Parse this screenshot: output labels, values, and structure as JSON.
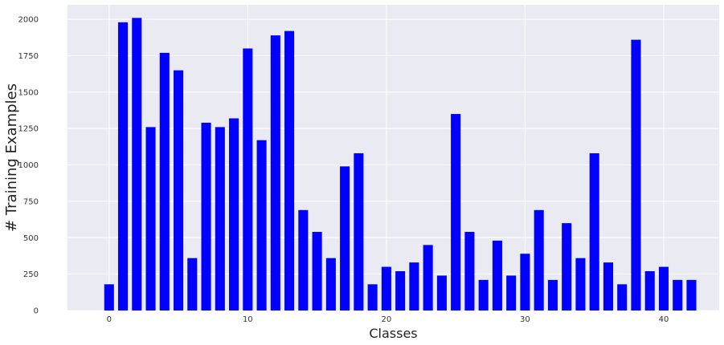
{
  "chart_data": {
    "type": "bar",
    "title": "",
    "xlabel": "Classes",
    "ylabel": "# Training Examples",
    "x": [
      0,
      1,
      2,
      3,
      4,
      5,
      6,
      7,
      8,
      9,
      10,
      11,
      12,
      13,
      14,
      15,
      16,
      17,
      18,
      19,
      20,
      21,
      22,
      23,
      24,
      25,
      26,
      27,
      28,
      29,
      30,
      31,
      32,
      33,
      34,
      35,
      36,
      37,
      38,
      39,
      40,
      41,
      42
    ],
    "values": [
      180,
      1980,
      2010,
      1260,
      1770,
      1650,
      360,
      1290,
      1260,
      1320,
      1800,
      1170,
      1890,
      1920,
      690,
      540,
      360,
      990,
      1080,
      180,
      300,
      270,
      330,
      450,
      240,
      1350,
      540,
      210,
      480,
      240,
      390,
      690,
      210,
      600,
      360,
      1080,
      330,
      180,
      1860,
      270,
      300,
      210,
      210
    ],
    "xlim": [
      -3,
      44
    ],
    "ylim": [
      0,
      2100
    ],
    "xticks": [
      0,
      10,
      20,
      30,
      40
    ],
    "xtick_labels": [
      "0",
      "10",
      "20",
      "30",
      "40"
    ],
    "yticks": [
      0,
      250,
      500,
      750,
      1000,
      1250,
      1500,
      1750,
      2000
    ],
    "ytick_labels": [
      "0",
      "250",
      "500",
      "750",
      "1000",
      "1250",
      "1500",
      "1750",
      "2000"
    ],
    "grid": true,
    "bar_color": "#0000ff",
    "background_color": "#eaeaf2",
    "grid_color": "#ffffff"
  }
}
